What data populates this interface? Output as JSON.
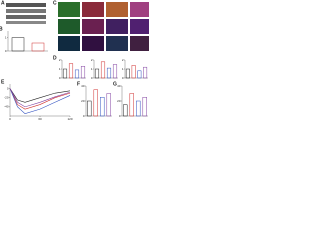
{
  "panels": [
    "A",
    "C"
  ],
  "chart_data": [
    {
      "type": "bar",
      "panel": "B",
      "categories": [
        null,
        null
      ],
      "values": [
        1.0,
        0.6
      ],
      "colors": [
        "#222222",
        "#d03030"
      ],
      "ylim": [
        0,
        1.5
      ],
      "yticks": [
        0,
        1
      ]
    },
    {
      "type": "bar",
      "panel": "D",
      "categories": [
        null,
        null,
        null,
        null
      ],
      "values": [
        1.0,
        1.6,
        0.9,
        1.3
      ],
      "colors": [
        "#222222",
        "#d03030",
        "#3050c0",
        "#8040a0"
      ],
      "ylim": [
        0,
        2
      ],
      "yticks": [
        0,
        1,
        2
      ]
    },
    {
      "type": "bar",
      "categories": [
        null,
        null,
        null,
        null
      ],
      "values": [
        1.0,
        1.8,
        1.1,
        1.5
      ],
      "colors": [
        "#222222",
        "#d03030",
        "#3050c0",
        "#8040a0"
      ],
      "ylim": [
        0,
        2
      ],
      "yticks": [
        0,
        1,
        2
      ]
    },
    {
      "type": "bar",
      "categories": [
        null,
        null,
        null,
        null
      ],
      "values": [
        1.0,
        1.4,
        0.8,
        1.2
      ],
      "colors": [
        "#222222",
        "#d03030",
        "#3050c0",
        "#8040a0"
      ],
      "ylim": [
        0,
        2
      ],
      "yticks": [
        0,
        1,
        2
      ]
    },
    {
      "type": "line",
      "panel": "E",
      "x": [
        0,
        15,
        30,
        60,
        90,
        120
      ],
      "series": [
        {
          "color": "#222222",
          "values": [
            0,
            -25,
            -30,
            -20,
            -10,
            -5
          ]
        },
        {
          "color": "#d03030",
          "values": [
            0,
            -35,
            -45,
            -35,
            -20,
            -10
          ]
        },
        {
          "color": "#3050c0",
          "values": [
            0,
            -40,
            -55,
            -45,
            -30,
            -15
          ]
        },
        {
          "color": "#8040a0",
          "values": [
            0,
            -30,
            -40,
            -30,
            -18,
            -8
          ]
        }
      ],
      "xlim": [
        0,
        120
      ],
      "xticks": [
        0,
        60,
        120
      ],
      "ylim": [
        -60,
        10
      ],
      "yticks": [
        -40,
        -20,
        0
      ]
    },
    {
      "type": "bar",
      "panel": "F",
      "categories": [
        null,
        null,
        null,
        null
      ],
      "values": [
        20,
        35,
        25,
        30
      ],
      "colors": [
        "#222222",
        "#d03030",
        "#3050c0",
        "#8040a0"
      ],
      "ylim": [
        0,
        40
      ],
      "yticks": [
        0,
        20,
        40
      ]
    },
    {
      "type": "bar",
      "panel": "G",
      "categories": [
        null,
        null,
        null,
        null
      ],
      "values": [
        15,
        30,
        20,
        25
      ],
      "colors": [
        "#222222",
        "#d03030",
        "#3050c0",
        "#8040a0"
      ],
      "ylim": [
        0,
        40
      ],
      "yticks": [
        0,
        20,
        40
      ]
    }
  ]
}
